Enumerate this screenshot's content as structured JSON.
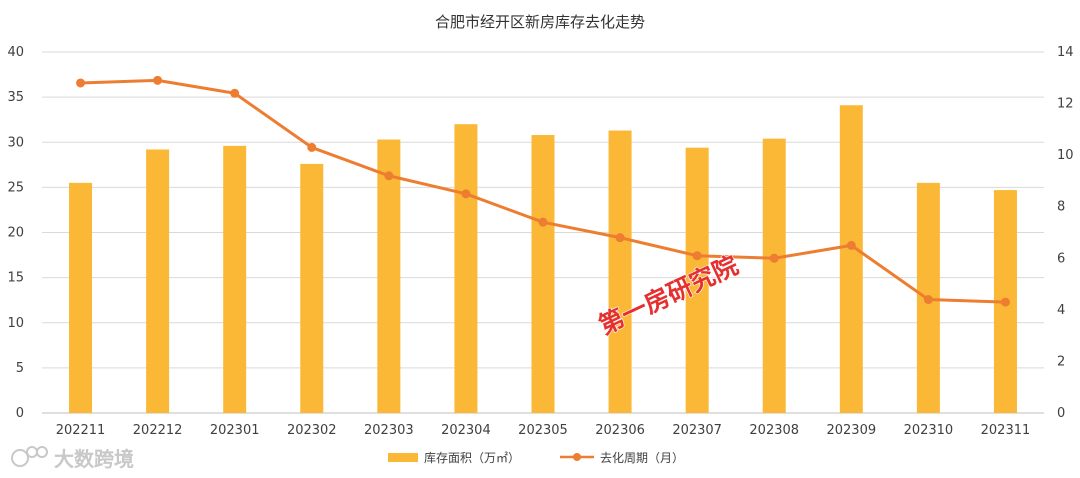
{
  "chart_data": {
    "type": "bar+line",
    "title": "合肥市经开区新房库存去化走势",
    "categories": [
      "202211",
      "202212",
      "202301",
      "202302",
      "202303",
      "202304",
      "202305",
      "202306",
      "202307",
      "202308",
      "202309",
      "202310",
      "202311"
    ],
    "series": [
      {
        "name": "库存面积（万㎡）",
        "type": "bar",
        "axis": "left",
        "color": "#FBB836",
        "values": [
          25.5,
          29.2,
          29.6,
          27.6,
          30.3,
          32.0,
          30.8,
          31.3,
          29.4,
          30.4,
          34.1,
          25.5,
          24.7
        ]
      },
      {
        "name": "去化周期（月）",
        "type": "line",
        "axis": "right",
        "color": "#ED7D31",
        "values": [
          12.8,
          12.9,
          12.4,
          10.3,
          9.2,
          8.5,
          7.4,
          6.8,
          6.1,
          6.0,
          6.5,
          4.4,
          4.3
        ]
      }
    ],
    "y_left": {
      "min": 0,
      "max": 40,
      "ticks": [
        0,
        5,
        10,
        15,
        20,
        25,
        30,
        35,
        40
      ]
    },
    "y_right": {
      "min": 0,
      "max": 14,
      "ticks": [
        0,
        2,
        4,
        6,
        8,
        10,
        12,
        14
      ]
    },
    "grid": true,
    "legend_position": "bottom"
  },
  "watermark": {
    "text": "第一房研究院",
    "color": "#e63030"
  },
  "logo": {
    "text": "大数跨境"
  }
}
